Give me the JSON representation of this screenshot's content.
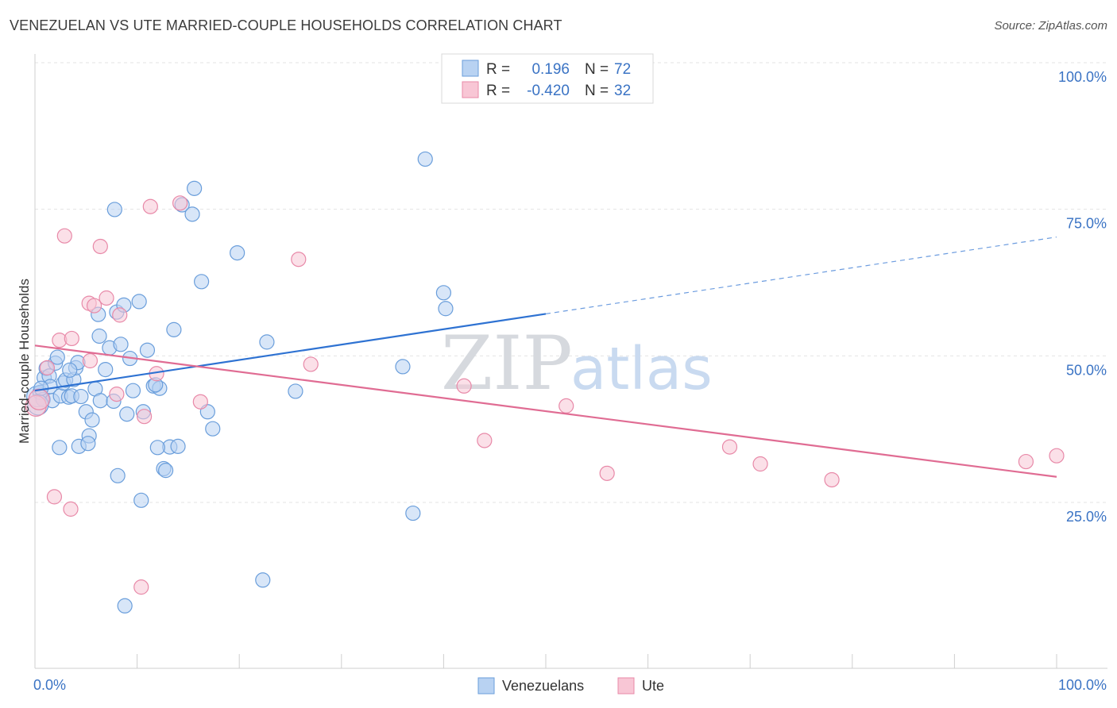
{
  "title": "VENEZUELAN VS UTE MARRIED-COUPLE HOUSEHOLDS CORRELATION CHART",
  "source": "Source: ZipAtlas.com",
  "watermark": {
    "zip": "ZIP",
    "atlas": "atlas"
  },
  "colors": {
    "blue_fill": "#b8d2f2",
    "blue_stroke": "#6a9edb",
    "blue_line": "#2e72d2",
    "pink_fill": "#f8c6d5",
    "pink_stroke": "#e889a8",
    "pink_line": "#e06c93",
    "grid": "#e3e3e3",
    "axis_text": "#3a73c4"
  },
  "legend": {
    "rows": [
      {
        "r_label": "R =",
        "r_value": "0.196",
        "n_label": "N =",
        "n_value": "72",
        "color": "blue"
      },
      {
        "r_label": "R =",
        "r_value": "-0.420",
        "n_label": "N =",
        "n_value": "32",
        "color": "pink"
      }
    ]
  },
  "chart_data": {
    "type": "scatter",
    "xlabel": "",
    "ylabel": "Married-couple Households",
    "xlim": [
      0,
      100
    ],
    "ylim": [
      0,
      105
    ],
    "x_tick_labels": [
      "0.0%",
      "100.0%"
    ],
    "y_ticks": [
      {
        "value": 100,
        "label": "100.0%"
      },
      {
        "value": 75,
        "label": "75.0%"
      },
      {
        "value": 50,
        "label": "50.0%"
      },
      {
        "value": 25,
        "label": "25.0%"
      }
    ],
    "series": [
      {
        "name": "Venezuelans",
        "color": "blue",
        "trend": {
          "x0": 0,
          "y0": 46.5,
          "x1": 50,
          "y1": 59.6,
          "dash_to_x": 100,
          "dash_to_y": 72.7
        },
        "points": [
          [
            0.2,
            45.5
          ],
          [
            0.5,
            46.2
          ],
          [
            0.8,
            45.0
          ],
          [
            0.9,
            48.7
          ],
          [
            1.1,
            50.3
          ],
          [
            1.4,
            49.0
          ],
          [
            1.5,
            47.2
          ],
          [
            1.7,
            44.8
          ],
          [
            2.0,
            51.2
          ],
          [
            2.2,
            52.2
          ],
          [
            2.5,
            45.6
          ],
          [
            2.8,
            47.8
          ],
          [
            3.0,
            48.3
          ],
          [
            3.3,
            45.4
          ],
          [
            3.6,
            45.6
          ],
          [
            3.8,
            48.4
          ],
          [
            4.0,
            50.4
          ],
          [
            4.2,
            51.3
          ],
          [
            4.5,
            45.5
          ],
          [
            5.0,
            42.9
          ],
          [
            5.3,
            38.8
          ],
          [
            5.6,
            41.5
          ],
          [
            4.3,
            37.0
          ],
          [
            5.9,
            46.8
          ],
          [
            6.2,
            59.5
          ],
          [
            6.4,
            44.8
          ],
          [
            6.9,
            50.1
          ],
          [
            7.3,
            53.8
          ],
          [
            7.7,
            44.7
          ],
          [
            8.0,
            59.9
          ],
          [
            8.4,
            54.4
          ],
          [
            8.7,
            61.1
          ],
          [
            9.0,
            42.5
          ],
          [
            9.6,
            46.5
          ],
          [
            10.2,
            61.7
          ],
          [
            10.6,
            42.9
          ],
          [
            11.0,
            53.4
          ],
          [
            11.6,
            47.3
          ],
          [
            12.2,
            46.9
          ],
          [
            12.6,
            33.2
          ],
          [
            13.2,
            36.9
          ],
          [
            13.6,
            56.9
          ],
          [
            14.4,
            78.2
          ],
          [
            15.4,
            76.6
          ],
          [
            15.6,
            81.0
          ],
          [
            16.3,
            65.1
          ],
          [
            16.9,
            42.9
          ],
          [
            17.4,
            40.0
          ],
          [
            19.8,
            70.0
          ],
          [
            22.3,
            14.2
          ],
          [
            22.7,
            54.8
          ],
          [
            25.5,
            46.4
          ],
          [
            36.0,
            50.6
          ],
          [
            37.0,
            25.6
          ],
          [
            38.2,
            86.0
          ],
          [
            40.0,
            63.2
          ],
          [
            40.2,
            60.5
          ],
          [
            7.8,
            77.4
          ],
          [
            8.1,
            32.0
          ],
          [
            10.4,
            27.8
          ],
          [
            8.8,
            9.8
          ],
          [
            12.0,
            36.8
          ],
          [
            12.8,
            32.9
          ],
          [
            6.3,
            55.8
          ],
          [
            2.4,
            36.8
          ],
          [
            5.2,
            37.5
          ],
          [
            0.3,
            44.1
          ],
          [
            0.6,
            46.9
          ],
          [
            3.4,
            50.0
          ],
          [
            14.0,
            37.0
          ],
          [
            9.3,
            52.0
          ],
          [
            11.8,
            47.5
          ]
        ]
      },
      {
        "name": "Ute",
        "color": "pink",
        "trend": {
          "x0": 0,
          "y0": 54.2,
          "x1": 100,
          "y1": 31.8
        },
        "points": [
          [
            0.1,
            43.9
          ],
          [
            0.4,
            45.0
          ],
          [
            1.2,
            50.4
          ],
          [
            1.9,
            28.4
          ],
          [
            2.4,
            55.1
          ],
          [
            2.9,
            72.9
          ],
          [
            3.6,
            55.4
          ],
          [
            3.5,
            26.3
          ],
          [
            5.4,
            51.6
          ],
          [
            5.3,
            61.4
          ],
          [
            5.8,
            61.0
          ],
          [
            6.4,
            71.1
          ],
          [
            7.0,
            62.3
          ],
          [
            8.0,
            45.9
          ],
          [
            8.3,
            59.4
          ],
          [
            10.4,
            13.0
          ],
          [
            10.7,
            42.1
          ],
          [
            11.3,
            77.9
          ],
          [
            11.9,
            49.4
          ],
          [
            14.2,
            78.5
          ],
          [
            16.2,
            44.6
          ],
          [
            25.8,
            68.9
          ],
          [
            27.0,
            51.0
          ],
          [
            42.0,
            47.3
          ],
          [
            44.0,
            38.0
          ],
          [
            52.0,
            43.9
          ],
          [
            56.0,
            32.4
          ],
          [
            68.0,
            36.9
          ],
          [
            71.0,
            34.0
          ],
          [
            78.0,
            31.3
          ],
          [
            97.0,
            34.4
          ],
          [
            100.0,
            35.4
          ]
        ]
      }
    ]
  },
  "bottom_legend": [
    {
      "label": "Venezuelans",
      "color": "blue"
    },
    {
      "label": "Ute",
      "color": "pink"
    }
  ]
}
